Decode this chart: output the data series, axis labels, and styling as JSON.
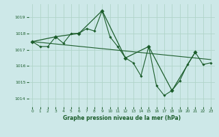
{
  "title": "Graphe pression niveau de la mer (hPa)",
  "bg_color": "#cde8e8",
  "grid_color": "#b0d4c8",
  "line_color": "#1a5c2a",
  "xlim": [
    -0.5,
    23.5
  ],
  "ylim": [
    1013.5,
    1019.8
  ],
  "yticks": [
    1014,
    1015,
    1016,
    1017,
    1018,
    1019
  ],
  "xticks": [
    0,
    1,
    2,
    3,
    4,
    5,
    6,
    7,
    8,
    9,
    10,
    11,
    12,
    13,
    14,
    15,
    16,
    17,
    18,
    19,
    20,
    21,
    22,
    23
  ],
  "series_hourly": {
    "x": [
      0,
      1,
      2,
      3,
      4,
      5,
      6,
      7,
      8,
      9,
      10,
      11,
      12,
      13,
      14,
      15,
      16,
      17,
      18,
      19,
      20,
      21,
      22,
      23
    ],
    "y": [
      1017.5,
      1017.2,
      1017.2,
      1017.8,
      1017.4,
      1018.0,
      1018.0,
      1018.3,
      1018.15,
      1019.4,
      1017.8,
      1017.2,
      1016.5,
      1016.2,
      1015.4,
      1017.2,
      1014.8,
      1014.2,
      1014.5,
      1015.1,
      1016.1,
      1016.85,
      1016.1,
      1016.2
    ]
  },
  "series_trend": {
    "x": [
      0,
      23
    ],
    "y": [
      1017.5,
      1016.4
    ]
  },
  "series_synoptic": {
    "x": [
      0,
      3,
      6,
      9,
      12,
      15,
      18,
      21
    ],
    "y": [
      1017.5,
      1017.8,
      1018.0,
      1019.4,
      1016.5,
      1017.2,
      1014.5,
      1016.85
    ]
  }
}
